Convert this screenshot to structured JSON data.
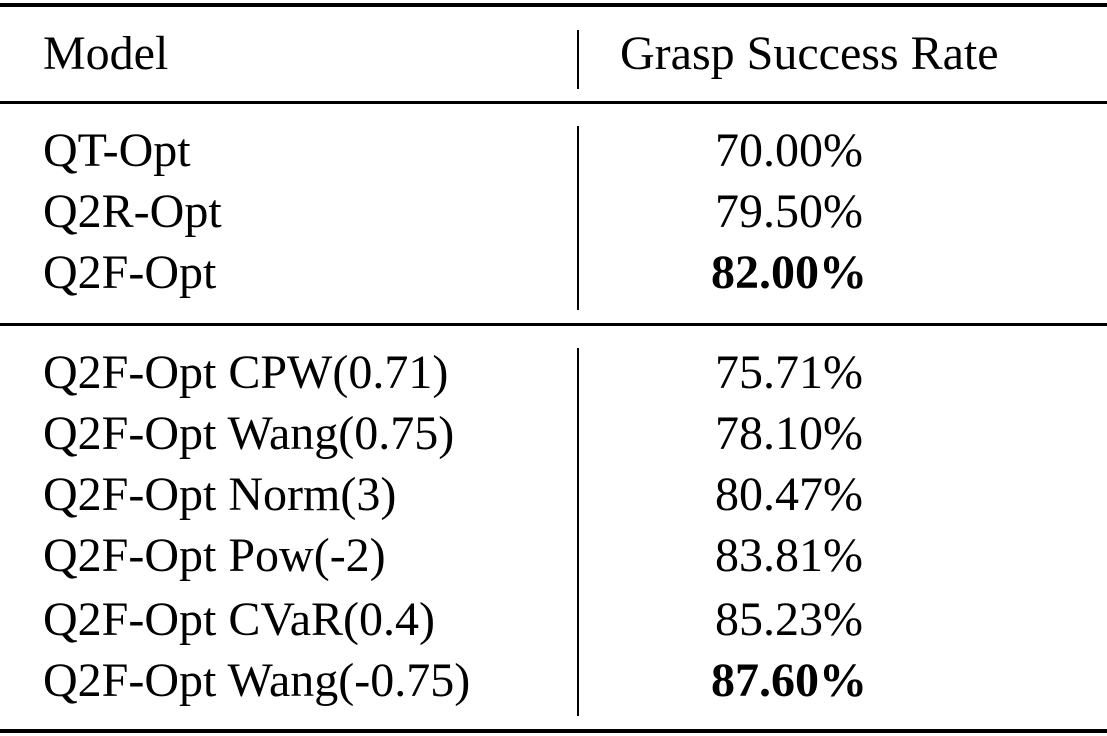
{
  "table": {
    "headers": {
      "model": "Model",
      "rate": "Grasp Success Rate"
    },
    "groups": [
      {
        "rows": [
          {
            "model": "QT-Opt",
            "rate": "70.00%",
            "bold": false
          },
          {
            "model": "Q2R-Opt",
            "rate": "79.50%",
            "bold": false
          },
          {
            "model": "Q2F-Opt",
            "rate": "82.00%",
            "bold": true
          }
        ]
      },
      {
        "rows": [
          {
            "model": "Q2F-Opt CPW(0.71)",
            "rate": "75.71%",
            "bold": false
          },
          {
            "model": "Q2F-Opt Wang(0.75)",
            "rate": "78.10%",
            "bold": false
          },
          {
            "model": "Q2F-Opt Norm(3)",
            "rate": "80.47%",
            "bold": false
          },
          {
            "model": "Q2F-Opt Pow(-2)",
            "rate": "83.81%",
            "bold": false
          },
          {
            "model": "Q2F-Opt CVaR(0.4)",
            "rate": "85.23%",
            "bold": false
          },
          {
            "model": "Q2F-Opt Wang(-0.75)",
            "rate": "87.60%",
            "bold": true
          }
        ]
      }
    ]
  }
}
